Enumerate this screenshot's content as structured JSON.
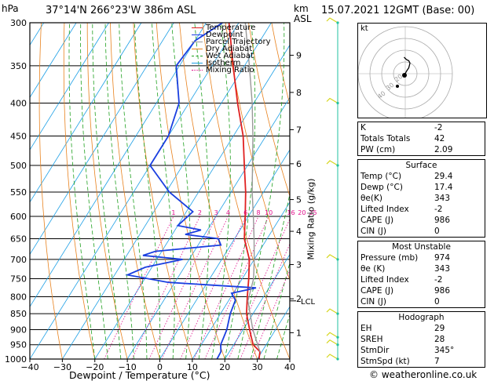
{
  "header": {
    "hpa_label": "hPa",
    "location": "37°14'N 266°23'W 386m ASL",
    "km_label": "km",
    "asl_label": "ASL",
    "datetime": "15.07.2021 12GMT (Base: 00)"
  },
  "chart_data": {
    "type": "line",
    "subtype": "skew-T log-P diagram",
    "xlabel": "Dewpoint / Temperature (°C)",
    "y2label": "Mixing Ratio (g/kg)",
    "xlim": [
      -40,
      40
    ],
    "ylim": [
      1000,
      300
    ],
    "x_ticks": [
      -40,
      -30,
      -20,
      -10,
      0,
      10,
      20,
      30,
      40
    ],
    "pressure_ticks": [
      300,
      350,
      400,
      450,
      500,
      550,
      600,
      650,
      700,
      750,
      800,
      850,
      900,
      950,
      1000
    ],
    "km_ticks": [
      {
        "label": "9",
        "p": 337
      },
      {
        "label": "8",
        "p": 385
      },
      {
        "label": "7",
        "p": 440
      },
      {
        "label": "6",
        "p": 497
      },
      {
        "label": "5",
        "p": 565
      },
      {
        "label": "4",
        "p": 633
      },
      {
        "label": "3",
        "p": 713
      },
      {
        "label": "2",
        "p": 806
      },
      {
        "label": "1",
        "p": 910
      }
    ],
    "lcl": {
      "label": "LCL",
      "p": 812
    },
    "mixing_ratio_labels": [
      "1",
      "2",
      "3",
      "4",
      "6",
      "8",
      "10",
      "16",
      "20",
      "25"
    ],
    "mixing_ratio_values": [
      1,
      2,
      3,
      4,
      6,
      8,
      10,
      16,
      20,
      25
    ],
    "legend": [
      "Temperature",
      "Dewpoint",
      "Parcel Trajectory",
      "Dry Adiabat",
      "Wet Adiabat",
      "Isotherm",
      "Mixing Ratio"
    ],
    "series": [
      {
        "name": "Temperature",
        "color": "#e02020",
        "points": [
          [
            1000,
            30.5
          ],
          [
            974,
            29.4
          ],
          [
            950,
            26
          ],
          [
            925,
            24
          ],
          [
            900,
            22
          ],
          [
            850,
            18
          ],
          [
            800,
            15
          ],
          [
            750,
            12
          ],
          [
            700,
            8.5
          ],
          [
            650,
            3
          ],
          [
            600,
            -1
          ],
          [
            550,
            -5.5
          ],
          [
            500,
            -11
          ],
          [
            450,
            -17
          ],
          [
            400,
            -25
          ],
          [
            350,
            -33.5
          ],
          [
            300,
            -43
          ]
        ]
      },
      {
        "name": "Dewpoint",
        "color": "#1a3fe0",
        "points": [
          [
            1000,
            17.6
          ],
          [
            974,
            17.4
          ],
          [
            950,
            16
          ],
          [
            925,
            15.5
          ],
          [
            900,
            15
          ],
          [
            850,
            13
          ],
          [
            810,
            12
          ],
          [
            790,
            9.5
          ],
          [
            775,
            16
          ],
          [
            760,
            -12
          ],
          [
            740,
            -26
          ],
          [
            720,
            -22
          ],
          [
            700,
            -12
          ],
          [
            690,
            -25
          ],
          [
            680,
            -22
          ],
          [
            665,
            -3
          ],
          [
            650,
            -5
          ],
          [
            640,
            -16
          ],
          [
            630,
            -12
          ],
          [
            620,
            -20
          ],
          [
            590,
            -18
          ],
          [
            550,
            -29
          ],
          [
            500,
            -40
          ],
          [
            450,
            -40
          ],
          [
            400,
            -43
          ],
          [
            350,
            -51
          ],
          [
            320,
            -50
          ],
          [
            300,
            -45
          ]
        ]
      },
      {
        "name": "Parcel Trajectory",
        "color": "#999999",
        "points": [
          [
            974,
            29.4
          ],
          [
            900,
            23
          ],
          [
            812,
            16
          ],
          [
            750,
            13.5
          ],
          [
            700,
            10
          ],
          [
            650,
            6
          ],
          [
            600,
            1.5
          ],
          [
            550,
            -3.5
          ],
          [
            500,
            -8.5
          ],
          [
            450,
            -14
          ],
          [
            400,
            -20.5
          ],
          [
            350,
            -28.5
          ],
          [
            300,
            -38
          ]
        ]
      }
    ],
    "wind_barbs_pressure": [
      300,
      400,
      500,
      700,
      850,
      925,
      950,
      1000
    ]
  },
  "hodograph": {
    "unit_label": "kt",
    "ring_labels": [
      "40",
      "30",
      "20"
    ],
    "trace": [
      [
        0,
        0
      ],
      [
        1,
        -2
      ],
      [
        3,
        -5
      ],
      [
        4,
        -9
      ],
      [
        3,
        -11
      ],
      [
        1,
        -12
      ],
      [
        -1,
        -14
      ]
    ],
    "storm_motion": {
      "direction": 345,
      "speed": 7
    }
  },
  "indices": {
    "top": [
      {
        "label": "K",
        "value": "-2"
      },
      {
        "label": "Totals Totals",
        "value": "42"
      },
      {
        "label": "PW (cm)",
        "value": "2.09"
      }
    ],
    "surface": {
      "title": "Surface",
      "rows": [
        {
          "label": "Temp (°C)",
          "value": "29.4"
        },
        {
          "label": "Dewp (°C)",
          "value": "17.4"
        },
        {
          "label": "θe(K)",
          "value": "343"
        },
        {
          "label": "Lifted Index",
          "value": "-2"
        },
        {
          "label": "CAPE (J)",
          "value": "986"
        },
        {
          "label": "CIN (J)",
          "value": "0"
        }
      ]
    },
    "most_unstable": {
      "title": "Most Unstable",
      "rows": [
        {
          "label": "Pressure (mb)",
          "value": "974"
        },
        {
          "label": "θe (K)",
          "value": "343"
        },
        {
          "label": "Lifted Index",
          "value": "-2"
        },
        {
          "label": "CAPE (J)",
          "value": "986"
        },
        {
          "label": "CIN (J)",
          "value": "0"
        }
      ]
    },
    "hodograph_box": {
      "title": "Hodograph",
      "rows": [
        {
          "label": "EH",
          "value": "29"
        },
        {
          "label": "SREH",
          "value": "28"
        },
        {
          "label": "StmDir",
          "value": "345°"
        },
        {
          "label": "StmSpd (kt)",
          "value": "7"
        }
      ]
    }
  },
  "footer": {
    "copyright": "© weatheronline.co.uk"
  },
  "colors": {
    "temperature": "#e02020",
    "dewpoint": "#1a3fe0",
    "parcel": "#999999",
    "dry_adiabat": "#e8821e",
    "wet_adiabat": "#1fa01f",
    "isotherm": "#1ea0e6",
    "mixing_ratio": "#e0108c",
    "wind_barb": "#d6d61e",
    "wind_line": "#22c2a0"
  }
}
